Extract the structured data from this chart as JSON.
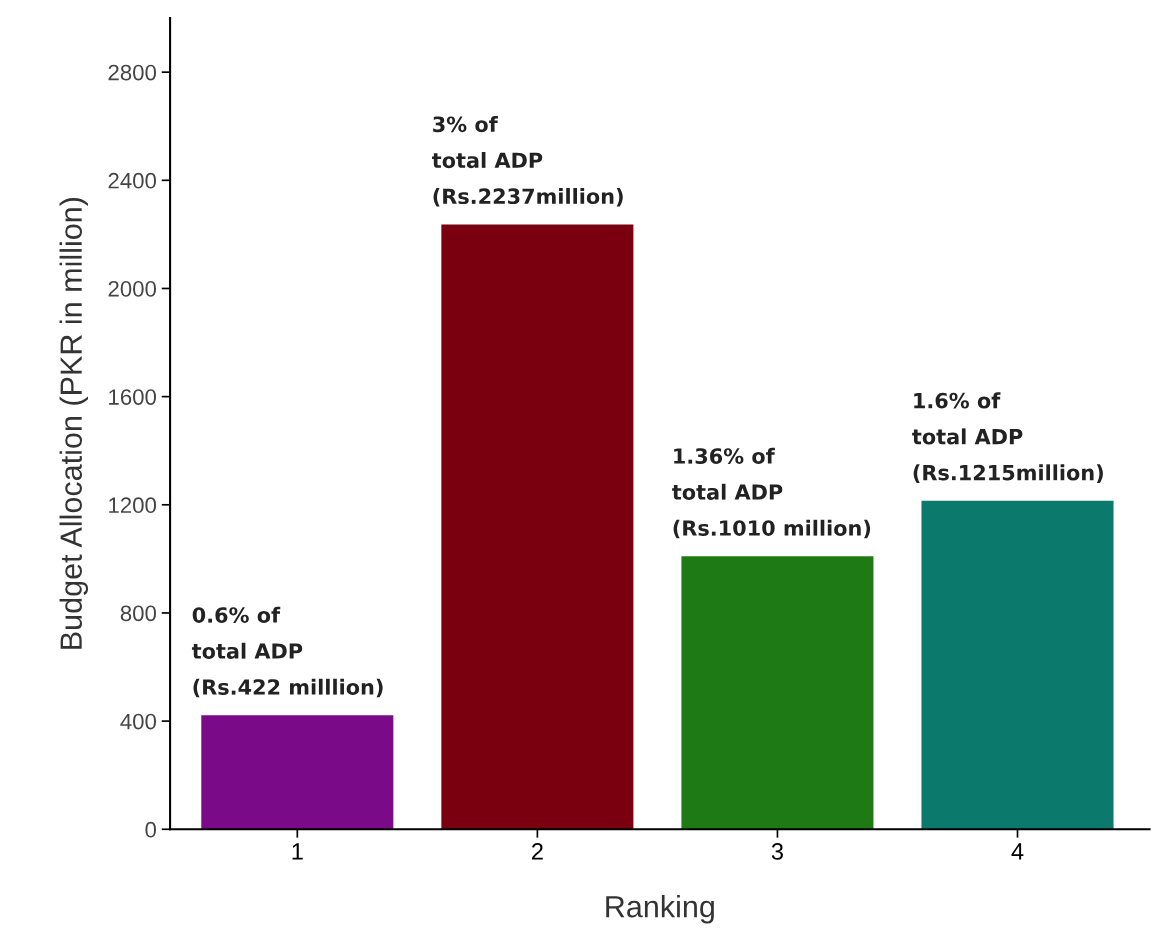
{
  "chart_data": {
    "type": "bar",
    "xlabel": "Ranking",
    "ylabel": "Budget Allocation (PKR in million)",
    "categories": [
      "1",
      "2",
      "3",
      "4"
    ],
    "values": [
      422,
      2237,
      1010,
      1215
    ],
    "colors": [
      "#7b0a88",
      "#7a0010",
      "#1e7a14",
      "#0b7a6c"
    ],
    "annotations": [
      {
        "text": "0.6% of\ntotal ADP\n(Rs.422 milllion)",
        "x": "1",
        "y": 422
      },
      {
        "text": "3% of\ntotal ADP\n(Rs.2237million)",
        "x": "2",
        "y": 2237
      },
      {
        "text": "1.36% of\ntotal ADP\n(Rs.1010 million)",
        "x": "3",
        "y": 1010
      },
      {
        "text": "1.6% of\ntotal ADP\n(Rs.1215million)",
        "x": "4",
        "y": 1215
      }
    ],
    "ylim": [
      0,
      3000
    ],
    "yticks": [
      0,
      400,
      800,
      1200,
      1600,
      2000,
      2400,
      2800
    ],
    "grid": false
  }
}
